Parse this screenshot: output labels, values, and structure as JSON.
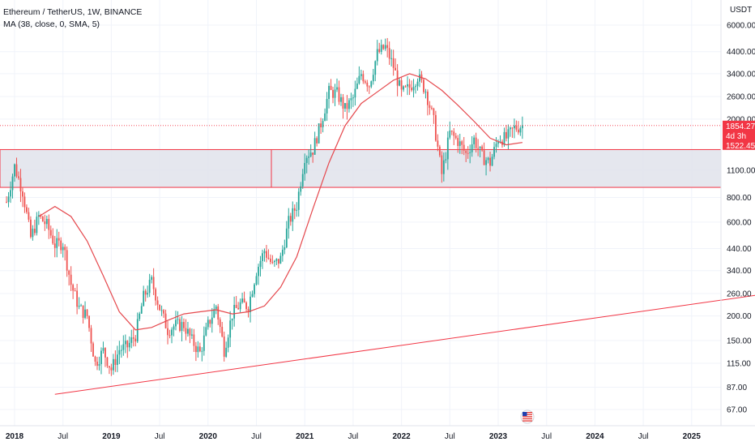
{
  "header": {
    "symbol_line": "Ethereum / TetherUS, 1W, BINANCE",
    "indicator_line": "MA (38, close, 0, SMA, 5)"
  },
  "colors": {
    "up": "#26a69a",
    "down": "#ef5350",
    "ma": "#e5484d",
    "line": "#f23645",
    "zone_fill": "#e0e3eb",
    "badge": "#f23645",
    "grid": "#f0f3fa"
  },
  "chart_data": {
    "type": "candlestick",
    "y_scale": "log",
    "y_unit": "USDT",
    "y_ticks": [
      "6000.00",
      "4400.00",
      "3400.00",
      "2600.00",
      "2000.00",
      "1100.00",
      "800.00",
      "600.00",
      "440.00",
      "340.00",
      "260.00",
      "200.00",
      "150.00",
      "115.00",
      "87.00",
      "67.00"
    ],
    "x_ticks": [
      "2018",
      "Jul",
      "2019",
      "Jul",
      "2020",
      "Jul",
      "2021",
      "Jul",
      "2022",
      "Jul",
      "2023",
      "Jul",
      "2024",
      "Jul",
      "2025"
    ],
    "price_badges": {
      "last": "1854.27",
      "countdown": "4d 3h",
      "ma": "1522.45"
    },
    "support_zone": {
      "low": 900,
      "high": 1400
    },
    "trendline": {
      "from": {
        "date": "2018-06",
        "price": 80
      },
      "to": {
        "date": "2025-09",
        "price": 255
      }
    },
    "ma_38": [
      [
        "2018-04",
        640
      ],
      [
        "2018-06",
        720
      ],
      [
        "2018-08",
        640
      ],
      [
        "2018-10",
        480
      ],
      [
        "2018-12",
        320
      ],
      [
        "2019-02",
        210
      ],
      [
        "2019-04",
        170
      ],
      [
        "2019-06",
        175
      ],
      [
        "2019-08",
        190
      ],
      [
        "2019-10",
        205
      ],
      [
        "2019-12",
        210
      ],
      [
        "2020-02",
        215
      ],
      [
        "2020-04",
        205
      ],
      [
        "2020-06",
        210
      ],
      [
        "2020-08",
        225
      ],
      [
        "2020-10",
        280
      ],
      [
        "2020-12",
        400
      ],
      [
        "2021-02",
        700
      ],
      [
        "2021-04",
        1200
      ],
      [
        "2021-06",
        1850
      ],
      [
        "2021-08",
        2400
      ],
      [
        "2021-10",
        2750
      ],
      [
        "2021-12",
        3150
      ],
      [
        "2022-02",
        3400
      ],
      [
        "2022-04",
        3200
      ],
      [
        "2022-06",
        2800
      ],
      [
        "2022-08",
        2350
      ],
      [
        "2022-10",
        1950
      ],
      [
        "2022-12",
        1600
      ],
      [
        "2023-02",
        1480
      ],
      [
        "2023-04",
        1522
      ]
    ],
    "candles_weekly_close": [
      [
        "2017-12",
        760
      ],
      [
        "2018-01",
        1150
      ],
      [
        "2018-02",
        860
      ],
      [
        "2018-03",
        500
      ],
      [
        "2018-04",
        640
      ],
      [
        "2018-05",
        580
      ],
      [
        "2018-06",
        460
      ],
      [
        "2018-07",
        470
      ],
      [
        "2018-08",
        290
      ],
      [
        "2018-09",
        220
      ],
      [
        "2018-10",
        200
      ],
      [
        "2018-11",
        115
      ],
      [
        "2018-12",
        133
      ],
      [
        "2019-01",
        107
      ],
      [
        "2019-02",
        135
      ],
      [
        "2019-03",
        140
      ],
      [
        "2019-04",
        160
      ],
      [
        "2019-05",
        250
      ],
      [
        "2019-06",
        300
      ],
      [
        "2019-07",
        220
      ],
      [
        "2019-08",
        170
      ],
      [
        "2019-09",
        180
      ],
      [
        "2019-10",
        180
      ],
      [
        "2019-11",
        150
      ],
      [
        "2019-12",
        130
      ],
      [
        "2020-01",
        180
      ],
      [
        "2020-02",
        225
      ],
      [
        "2020-03",
        135
      ],
      [
        "2020-04",
        205
      ],
      [
        "2020-05",
        230
      ],
      [
        "2020-06",
        225
      ],
      [
        "2020-07",
        340
      ],
      [
        "2020-08",
        430
      ],
      [
        "2020-09",
        360
      ],
      [
        "2020-10",
        390
      ],
      [
        "2020-11",
        600
      ],
      [
        "2020-12",
        730
      ],
      [
        "2021-01",
        1300
      ],
      [
        "2021-02",
        1400
      ],
      [
        "2021-03",
        1900
      ],
      [
        "2021-04",
        2750
      ],
      [
        "2021-05",
        2700
      ],
      [
        "2021-06",
        2250
      ],
      [
        "2021-07",
        2550
      ],
      [
        "2021-08",
        3400
      ],
      [
        "2021-09",
        3000
      ],
      [
        "2021-10",
        4300
      ],
      [
        "2021-11",
        4650
      ],
      [
        "2021-12",
        3700
      ],
      [
        "2022-01",
        2700
      ],
      [
        "2022-02",
        2900
      ],
      [
        "2022-03",
        3300
      ],
      [
        "2022-04",
        2800
      ],
      [
        "2022-05",
        1950
      ],
      [
        "2022-06",
        1050
      ],
      [
        "2022-07",
        1700
      ],
      [
        "2022-08",
        1550
      ],
      [
        "2022-09",
        1330
      ],
      [
        "2022-10",
        1580
      ],
      [
        "2022-11",
        1290
      ],
      [
        "2022-12",
        1200
      ],
      [
        "2023-01",
        1600
      ],
      [
        "2023-02",
        1600
      ],
      [
        "2023-03",
        1800
      ],
      [
        "2023-04",
        1854
      ]
    ]
  }
}
